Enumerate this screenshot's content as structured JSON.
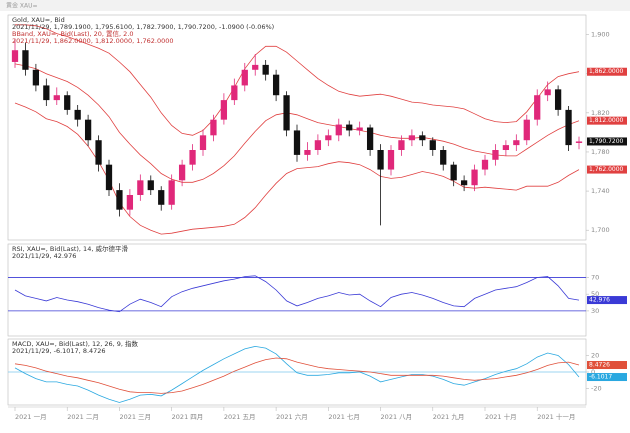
{
  "window_title": "黄金 XAU=",
  "chart_data": [
    {
      "type": "candlestick",
      "title": "Gold, XAU=, Bid",
      "subtitle": "2021/11/29, 1,789.1900, 1,795.6100, 1,782.7900, 1,790.7200, -1.0900 (-0.06%)",
      "annotations": [
        "BBand, XAU=, Bid(Last), 20, 置信, 2.0",
        "2021/11/29, 1,862.0000, 1,812.0000, 1,762.0000"
      ],
      "categories": [
        "2021 一月",
        null,
        null,
        null,
        null,
        "2021 二月",
        null,
        null,
        null,
        null,
        "2021 三月",
        null,
        null,
        null,
        null,
        "2021 四月",
        null,
        null,
        null,
        null,
        "2021 五月",
        null,
        null,
        null,
        null,
        "2021 六月",
        null,
        null,
        null,
        null,
        "2021 七月",
        null,
        null,
        null,
        null,
        "2021 八月",
        null,
        null,
        null,
        null,
        "2021 九月",
        null,
        null,
        null,
        null,
        "2021 十月",
        null,
        null,
        null,
        null,
        "2021 十一月",
        null,
        null,
        null,
        null
      ],
      "open": [
        1872,
        1884,
        1864,
        1848,
        1833,
        1838,
        1823,
        1813,
        1792,
        1767,
        1741,
        1721,
        1736,
        1751,
        1741,
        1726,
        1751,
        1767,
        1782,
        1797,
        1813,
        1833,
        1848,
        1864,
        1869,
        1859,
        1838,
        1802,
        1777,
        1782,
        1792,
        1797,
        1808,
        1802,
        1805,
        1782,
        1762,
        1782,
        1792,
        1797,
        1792,
        1782,
        1767,
        1751,
        1746,
        1762,
        1772,
        1782,
        1787,
        1792,
        1813,
        1838,
        1844,
        1823,
        1789.19
      ],
      "high": [
        1896,
        1892,
        1870,
        1855,
        1846,
        1842,
        1828,
        1818,
        1797,
        1772,
        1748,
        1742,
        1757,
        1756,
        1745,
        1757,
        1772,
        1788,
        1803,
        1818,
        1840,
        1855,
        1871,
        1880,
        1874,
        1864,
        1842,
        1808,
        1790,
        1798,
        1803,
        1814,
        1812,
        1811,
        1808,
        1788,
        1787,
        1797,
        1803,
        1801,
        1795,
        1786,
        1770,
        1756,
        1767,
        1777,
        1788,
        1792,
        1798,
        1818,
        1844,
        1852,
        1848,
        1827,
        1795.61
      ],
      "low": [
        1866,
        1858,
        1842,
        1827,
        1828,
        1818,
        1806,
        1786,
        1760,
        1735,
        1714,
        1715,
        1730,
        1736,
        1720,
        1721,
        1745,
        1761,
        1776,
        1791,
        1808,
        1828,
        1842,
        1858,
        1853,
        1832,
        1796,
        1770,
        1771,
        1777,
        1786,
        1791,
        1796,
        1797,
        1776,
        1705,
        1756,
        1776,
        1786,
        1786,
        1776,
        1761,
        1745,
        1740,
        1740,
        1756,
        1766,
        1776,
        1781,
        1787,
        1807,
        1832,
        1817,
        1781,
        1782.79
      ],
      "close": [
        1884,
        1864,
        1848,
        1833,
        1838,
        1823,
        1813,
        1792,
        1767,
        1741,
        1721,
        1736,
        1751,
        1741,
        1726,
        1751,
        1767,
        1782,
        1797,
        1813,
        1833,
        1848,
        1864,
        1869,
        1859,
        1838,
        1802,
        1777,
        1782,
        1792,
        1797,
        1808,
        1802,
        1805,
        1782,
        1762,
        1782,
        1792,
        1797,
        1792,
        1782,
        1767,
        1751,
        1746,
        1762,
        1772,
        1782,
        1787,
        1792,
        1813,
        1838,
        1844,
        1823,
        1787,
        1790.72
      ],
      "close_label": "1,790.7200",
      "color_up": "#e0287a",
      "color_down": "#111111",
      "series": [
        {
          "color": "#e04040",
          "last_label": "1,862.0000",
          "values": [
            1910,
            1910,
            1909,
            1906,
            1901,
            1898,
            1894,
            1890,
            1886,
            1881,
            1872,
            1862,
            1849,
            1836,
            1820,
            1807,
            1799,
            1797,
            1802,
            1813,
            1828,
            1846,
            1865,
            1879,
            1888,
            1888,
            1882,
            1873,
            1864,
            1855,
            1848,
            1842,
            1839,
            1837,
            1838,
            1839,
            1837,
            1834,
            1831,
            1830,
            1828,
            1827,
            1826,
            1824,
            1819,
            1814,
            1811,
            1810,
            1811,
            1821,
            1835,
            1849,
            1857,
            1860,
            1862
          ]
        },
        {
          "color": "#e04040",
          "last_label": "1,812.0000",
          "values": [
            1870,
            1868,
            1865,
            1860,
            1856,
            1852,
            1846,
            1838,
            1828,
            1816,
            1800,
            1788,
            1777,
            1768,
            1758,
            1752,
            1749,
            1749,
            1752,
            1758,
            1766,
            1776,
            1789,
            1801,
            1812,
            1818,
            1820,
            1818,
            1814,
            1810,
            1808,
            1806,
            1804,
            1802,
            1800,
            1797,
            1795,
            1794,
            1794,
            1795,
            1793,
            1791,
            1788,
            1784,
            1781,
            1779,
            1777,
            1776,
            1776,
            1783,
            1790,
            1797,
            1803,
            1808,
            1812
          ]
        },
        {
          "color": "#e04040",
          "last_label": "1,762.0000",
          "values": [
            1830,
            1826,
            1821,
            1814,
            1811,
            1806,
            1798,
            1786,
            1770,
            1751,
            1728,
            1714,
            1705,
            1700,
            1696,
            1697,
            1699,
            1701,
            1702,
            1703,
            1704,
            1706,
            1713,
            1723,
            1736,
            1748,
            1758,
            1763,
            1764,
            1765,
            1768,
            1770,
            1769,
            1767,
            1762,
            1755,
            1753,
            1754,
            1757,
            1760,
            1758,
            1755,
            1750,
            1744,
            1743,
            1744,
            1743,
            1742,
            1741,
            1745,
            1745,
            1745,
            1749,
            1756,
            1762
          ]
        }
      ],
      "ylim": [
        1690,
        1920
      ],
      "yticks": [
        {
          "value": 1700,
          "label": "1,700"
        },
        {
          "value": 1740,
          "label": "1,740"
        },
        {
          "value": 1780,
          "label": "1,780"
        },
        {
          "value": 1820,
          "label": "1,820"
        },
        {
          "value": 1860,
          "label": "1,860"
        },
        {
          "value": 1900,
          "label": "1,900"
        }
      ],
      "grid": false
    },
    {
      "type": "line",
      "title": "RSI, XAU=, Bid(Last), 14, 威尔德平滑",
      "subtitle": "2021/11/29, 42.976",
      "series": [
        {
          "color": "#3a3ad6",
          "last_label": "42.976",
          "values": [
            55,
            48,
            45,
            42,
            46,
            43,
            41,
            38,
            34,
            31,
            29,
            38,
            44,
            40,
            35,
            47,
            53,
            57,
            60,
            63,
            66,
            68,
            71,
            72,
            65,
            55,
            42,
            36,
            40,
            45,
            48,
            52,
            49,
            50,
            42,
            35,
            46,
            50,
            52,
            49,
            45,
            40,
            36,
            35,
            45,
            50,
            55,
            57,
            59,
            64,
            70,
            71,
            60,
            45,
            42.976
          ]
        }
      ],
      "levels": [
        30,
        70
      ],
      "level_color": "#3a3ad6",
      "ylim": [
        0,
        110
      ],
      "yticks": [
        30,
        50,
        70
      ],
      "grid": false
    },
    {
      "type": "line",
      "title": "MACD, XAU=, Bid(Last), 12, 26, 9, 指数",
      "subtitle": "2021/11/29, -6.1017, 8.4726",
      "series": [
        {
          "color": "#2aa8e0",
          "last_label": "-6.1017",
          "values": [
            5,
            -2,
            -8,
            -12,
            -12,
            -15,
            -17,
            -22,
            -28,
            -33,
            -37,
            -33,
            -28,
            -27,
            -29,
            -22,
            -14,
            -6,
            2,
            9,
            16,
            22,
            28,
            31,
            29,
            22,
            10,
            -1,
            -4,
            -4,
            -3,
            -1,
            -1,
            0,
            -5,
            -12,
            -9,
            -6,
            -3,
            -3,
            -5,
            -9,
            -14,
            -16,
            -12,
            -8,
            -3,
            1,
            4,
            10,
            18,
            23,
            20,
            9,
            -6.1017
          ]
        },
        {
          "color": "#e0503a",
          "last_label": "8.4726",
          "values": [
            10,
            8,
            5,
            1,
            -2,
            -5,
            -7,
            -10,
            -13,
            -17,
            -21,
            -24,
            -25,
            -25,
            -26,
            -25,
            -23,
            -19,
            -15,
            -10,
            -5,
            1,
            6,
            11,
            15,
            17,
            16,
            12,
            9,
            6,
            4,
            3,
            2,
            1,
            0,
            -2,
            -4,
            -4,
            -4,
            -4,
            -4,
            -5,
            -7,
            -9,
            -10,
            -9,
            -8,
            -6,
            -4,
            -1,
            3,
            8,
            11,
            12,
            8.4726
          ]
        }
      ],
      "levels": [
        0
      ],
      "level_color": "#7cc8ee",
      "ylim": [
        -40,
        40
      ],
      "yticks": [
        -20,
        0,
        20
      ],
      "grid": false
    }
  ]
}
